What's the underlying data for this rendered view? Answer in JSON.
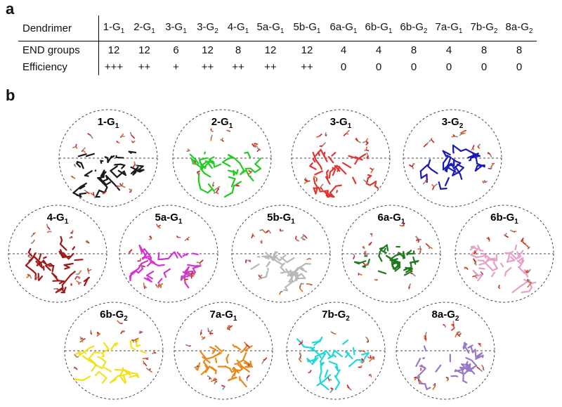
{
  "panel_a_label": "a",
  "panel_b_label": "b",
  "table": {
    "row_headers": [
      "Dendrimer",
      "END groups",
      "Efficiency"
    ],
    "columns": [
      {
        "base": "1-G",
        "sub": "1",
        "end": "12",
        "eff": "+++"
      },
      {
        "base": "2-G",
        "sub": "1",
        "end": "12",
        "eff": "++"
      },
      {
        "base": "3-G",
        "sub": "1",
        "end": "6",
        "eff": "+"
      },
      {
        "base": "3-G",
        "sub": "2",
        "end": "12",
        "eff": "++"
      },
      {
        "base": "4-G",
        "sub": "1",
        "end": "8",
        "eff": "++"
      },
      {
        "base": "5a-G",
        "sub": "1",
        "end": "12",
        "eff": "++"
      },
      {
        "base": "5b-G",
        "sub": "1",
        "end": "12",
        "eff": "++"
      },
      {
        "base": "6a-G",
        "sub": "1",
        "end": "4",
        "eff": "0"
      },
      {
        "base": "6b-G",
        "sub": "1",
        "end": "4",
        "eff": "0"
      },
      {
        "base": "6b-G",
        "sub": "2",
        "end": "8",
        "eff": "0"
      },
      {
        "base": "7a-G",
        "sub": "1",
        "end": "4",
        "eff": "0"
      },
      {
        "base": "7b-G",
        "sub": "2",
        "end": "8",
        "eff": "0"
      },
      {
        "base": "8a-G",
        "sub": "2",
        "end": "8",
        "eff": "0"
      }
    ]
  },
  "structures": [
    {
      "base": "1-G",
      "sub": "1",
      "color": "#1a1a1a"
    },
    {
      "base": "2-G",
      "sub": "1",
      "color": "#22cc22"
    },
    {
      "base": "3-G",
      "sub": "1",
      "color": "#e53333"
    },
    {
      "base": "3-G",
      "sub": "2",
      "color": "#1a1ab8"
    },
    {
      "base": "4-G",
      "sub": "1",
      "color": "#a01818"
    },
    {
      "base": "5a-G",
      "sub": "1",
      "color": "#d633d6"
    },
    {
      "base": "5b-G",
      "sub": "1",
      "color": "#b8b8b8"
    },
    {
      "base": "6a-G",
      "sub": "1",
      "color": "#1f7a1f"
    },
    {
      "base": "6b-G",
      "sub": "1",
      "color": "#e8a0c8"
    },
    {
      "base": "6b-G",
      "sub": "2",
      "color": "#f2e21a"
    },
    {
      "base": "7a-G",
      "sub": "1",
      "color": "#e88a1a"
    },
    {
      "base": "7b-G",
      "sub": "2",
      "color": "#22d8d8"
    },
    {
      "base": "8a-G",
      "sub": "2",
      "color": "#9a78c8"
    }
  ],
  "accent_colors": {
    "end_group_orange": "#e8651a",
    "end_group_red": "#d41c1c",
    "end_group_gray": "#8a8a8a"
  }
}
